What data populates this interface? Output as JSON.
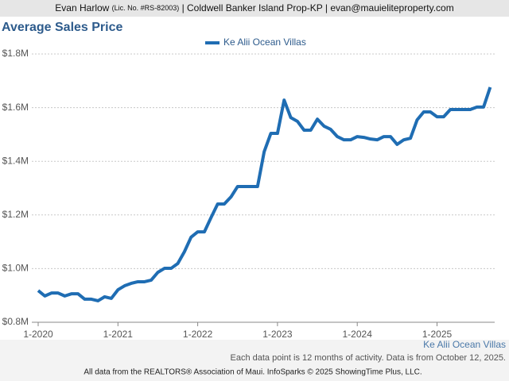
{
  "header": {
    "name": "Evan Harlow",
    "license": "(Lic. No. #RS-82003)",
    "rest": "| Coldwell Banker Island Prop-KP | evan@mauieliteproperty.com"
  },
  "chart_data": {
    "type": "line",
    "title": "Average Sales Price",
    "categories": [
      "1-2020",
      null,
      null,
      null,
      null,
      null,
      null,
      null,
      null,
      null,
      null,
      null,
      "1-2021",
      null,
      null,
      null,
      null,
      null,
      null,
      null,
      null,
      null,
      null,
      null,
      "1-2022",
      null,
      null,
      null,
      null,
      null,
      null,
      null,
      null,
      null,
      null,
      null,
      "1-2023",
      null,
      null,
      null,
      null,
      null,
      null,
      null,
      null,
      null,
      null,
      null,
      "1-2024",
      null,
      null,
      null,
      null,
      null,
      null,
      null,
      null,
      null,
      null,
      null,
      "1-2025",
      null,
      null,
      null,
      null,
      null,
      null,
      null,
      null
    ],
    "series": [
      {
        "name": "Ke Alii Ocean Villas",
        "color": "#1f6db3",
        "values": [
          918000,
          898000,
          909000,
          909000,
          898000,
          906000,
          906000,
          886000,
          886000,
          880000,
          895000,
          889000,
          921000,
          936000,
          945000,
          951000,
          951000,
          957000,
          986000,
          1001000,
          1001000,
          1019000,
          1063000,
          1117000,
          1137000,
          1137000,
          1190000,
          1241000,
          1241000,
          1267000,
          1306000,
          1306000,
          1306000,
          1306000,
          1436000,
          1504000,
          1504000,
          1628000,
          1563000,
          1549000,
          1516000,
          1516000,
          1557000,
          1531000,
          1519000,
          1492000,
          1480000,
          1480000,
          1492000,
          1489000,
          1483000,
          1480000,
          1492000,
          1492000,
          1463000,
          1480000,
          1486000,
          1554000,
          1584000,
          1584000,
          1566000,
          1566000,
          1593000,
          1593000,
          1593000,
          1593000,
          1602000,
          1602000,
          1676000
        ]
      }
    ],
    "ylim": [
      800000,
      1800000
    ],
    "yticks": [
      {
        "value": 800000,
        "label": "$0.8M"
      },
      {
        "value": 1000000,
        "label": "$1.0M"
      },
      {
        "value": 1200000,
        "label": "$1.2M"
      },
      {
        "value": 1400000,
        "label": "$1.4M"
      },
      {
        "value": 1600000,
        "label": "$1.6M"
      },
      {
        "value": 1800000,
        "label": "$1.8M"
      }
    ],
    "grid": true,
    "note": "Each data point is 12 months of activity. Data is from October 12, 2025.",
    "credit": "All data from the REALTORS® Association of Maui. InfoSparks © 2025 ShowingTime Plus, LLC."
  }
}
